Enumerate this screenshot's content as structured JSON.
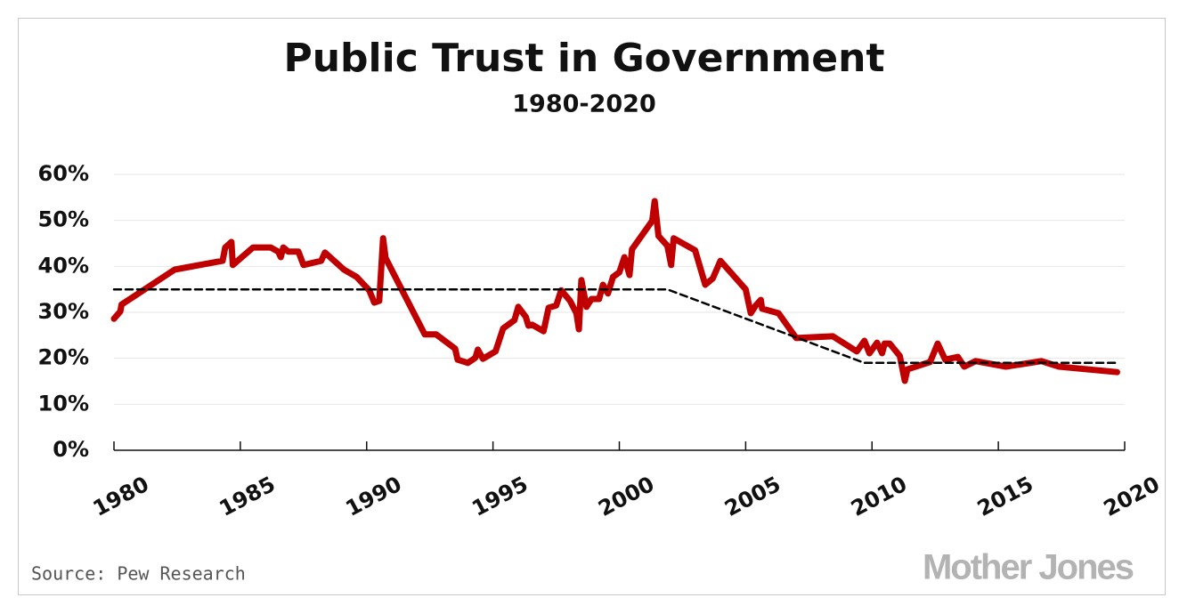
{
  "chart_data": {
    "type": "line",
    "title": "Public Trust in Government",
    "subtitle": "1980-2020",
    "source": "Source: Pew Research",
    "logo": "Mother Jones",
    "xlim": [
      1980,
      2020
    ],
    "xticks": [
      1980,
      1985,
      1990,
      1995,
      2000,
      2005,
      2010,
      2015,
      2020
    ],
    "ylim": [
      0,
      60
    ],
    "yticks": [
      {
        "value": 0,
        "label": "0%"
      },
      {
        "value": 10,
        "label": "10%"
      },
      {
        "value": 20,
        "label": "20%"
      },
      {
        "value": 30,
        "label": "30%"
      },
      {
        "value": 40,
        "label": "40%"
      },
      {
        "value": 50,
        "label": "50%"
      },
      {
        "value": 60,
        "label": "60%"
      }
    ],
    "grid": true,
    "series": [
      {
        "color": "#c00000",
        "style": "solid",
        "x": [
          1980.0,
          1980.25,
          1980.3,
          1980.8,
          1982.4,
          1984.3,
          1984.4,
          1984.65,
          1984.7,
          1985.5,
          1986.2,
          1986.5,
          1986.6,
          1986.7,
          1986.9,
          1987.3,
          1987.5,
          1988.2,
          1988.35,
          1989.1,
          1989.6,
          1990.1,
          1990.3,
          1990.5,
          1990.65,
          1990.75,
          1992.3,
          1992.75,
          1993.5,
          1993.6,
          1994.0,
          1994.3,
          1994.4,
          1994.6,
          1995.1,
          1995.4,
          1995.85,
          1996.0,
          1996.3,
          1996.4,
          1996.55,
          1997.0,
          1997.2,
          1997.5,
          1997.7,
          1998.05,
          1998.3,
          1998.4,
          1998.5,
          1998.7,
          1998.9,
          1999.2,
          1999.35,
          1999.55,
          1999.75,
          2000.0,
          2000.2,
          2000.4,
          2000.5,
          2001.3,
          2001.4,
          2001.55,
          2001.9,
          2002.05,
          2002.15,
          2003.0,
          2003.4,
          2003.7,
          2004.0,
          2005.0,
          2005.2,
          2005.4,
          2005.6,
          2005.65,
          2006.3,
          2007.0,
          2008.45,
          2009.4,
          2009.7,
          2009.9,
          2010.2,
          2010.4,
          2010.5,
          2010.7,
          2011.1,
          2011.3,
          2011.4,
          2012.3,
          2012.6,
          2012.9,
          2013.4,
          2013.65,
          2014.1,
          2015.3,
          2016.7,
          2017.4,
          2019.7
        ],
        "values": [
          28.6,
          30.2,
          31.7,
          33.5,
          39.3,
          41.2,
          44.1,
          45.3,
          40.3,
          44.1,
          44.1,
          43.2,
          42.0,
          44.1,
          43.2,
          43.2,
          40.3,
          41.2,
          43.0,
          39.3,
          37.7,
          34.8,
          32.1,
          32.5,
          46.1,
          41.8,
          25.2,
          25.2,
          22.1,
          19.7,
          19.0,
          20.1,
          21.9,
          19.9,
          21.5,
          26.5,
          28.3,
          31.2,
          29.0,
          27.1,
          27.3,
          25.9,
          31.0,
          31.5,
          34.8,
          32.5,
          29.8,
          26.3,
          37.0,
          31.2,
          32.9,
          32.9,
          36.0,
          34.1,
          37.7,
          38.7,
          42.0,
          38.1,
          43.7,
          49.9,
          54.2,
          46.6,
          44.5,
          40.3,
          46.1,
          43.5,
          36.0,
          37.4,
          41.2,
          35.0,
          29.8,
          31.5,
          32.7,
          30.8,
          29.8,
          24.4,
          24.8,
          21.5,
          23.8,
          21.1,
          23.4,
          21.1,
          23.2,
          23.2,
          20.5,
          15.1,
          17.6,
          19.2,
          23.2,
          19.7,
          20.3,
          18.2,
          19.4,
          18.2,
          19.4,
          18.2,
          17.0
        ]
      },
      {
        "color": "#000000",
        "style": "dashed",
        "x": [
          1980.0,
          2001.9,
          2009.7,
          2019.7
        ],
        "values": [
          35,
          35,
          19,
          19
        ]
      }
    ]
  }
}
